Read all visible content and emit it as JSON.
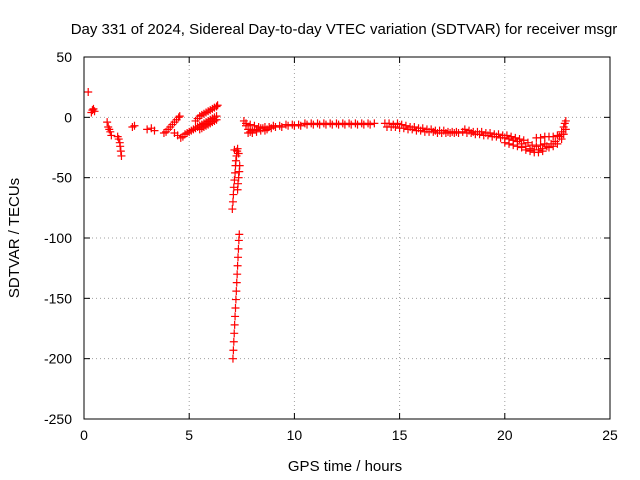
{
  "chart_data": {
    "type": "scatter",
    "title": "Day 331 of 2024, Sidereal Day-to-day VTEC variation (SDTVAR) for receiver msgr",
    "xlabel": "GPS time / hours",
    "ylabel": "SDTVAR / TECUs",
    "xlim": [
      0,
      25
    ],
    "ylim": [
      -250,
      50
    ],
    "xticks": [
      0,
      5,
      10,
      15,
      20,
      25
    ],
    "yticks": [
      50,
      0,
      -50,
      -100,
      -150,
      -200,
      -250
    ],
    "xtick_labels": [
      "0",
      "5",
      "10",
      "15",
      "20",
      "25"
    ],
    "ytick_labels": [
      "50",
      "0",
      "-50",
      "-100",
      "-150",
      "-200",
      "-250"
    ],
    "grid": true,
    "marker": "+",
    "color": "#ff0000",
    "series": [
      {
        "name": "SDTVAR",
        "points": [
          [
            0.2,
            21
          ],
          [
            0.35,
            4
          ],
          [
            0.4,
            6
          ],
          [
            0.45,
            7
          ],
          [
            0.5,
            5
          ],
          [
            1.1,
            -4
          ],
          [
            1.15,
            -8
          ],
          [
            1.2,
            -10
          ],
          [
            1.25,
            -12
          ],
          [
            1.3,
            -15
          ],
          [
            1.6,
            -16
          ],
          [
            1.65,
            -18
          ],
          [
            1.7,
            -21
          ],
          [
            1.72,
            -24
          ],
          [
            1.75,
            -28
          ],
          [
            1.78,
            -32
          ],
          [
            2.3,
            -8
          ],
          [
            2.4,
            -7
          ],
          [
            3.0,
            -10
          ],
          [
            3.2,
            -9
          ],
          [
            3.35,
            -11
          ],
          [
            3.8,
            -13
          ],
          [
            3.9,
            -12
          ],
          [
            4.0,
            -10
          ],
          [
            4.1,
            -8
          ],
          [
            4.2,
            -6
          ],
          [
            4.3,
            -4
          ],
          [
            4.4,
            -2
          ],
          [
            4.5,
            0
          ],
          [
            4.55,
            1
          ],
          [
            4.3,
            -13
          ],
          [
            4.45,
            -15
          ],
          [
            4.6,
            -17
          ],
          [
            4.7,
            -16
          ],
          [
            4.8,
            -14
          ],
          [
            4.9,
            -13
          ],
          [
            5.0,
            -12
          ],
          [
            5.1,
            -11
          ],
          [
            5.2,
            -10
          ],
          [
            5.3,
            -9
          ],
          [
            5.4,
            -8
          ],
          [
            5.5,
            -7
          ],
          [
            5.6,
            -6
          ],
          [
            5.7,
            -5
          ],
          [
            5.8,
            -4
          ],
          [
            5.9,
            -3
          ],
          [
            6.0,
            -2
          ],
          [
            6.1,
            -1
          ],
          [
            6.2,
            0
          ],
          [
            6.3,
            1
          ],
          [
            5.3,
            -3
          ],
          [
            5.4,
            -1
          ],
          [
            5.5,
            1
          ],
          [
            5.6,
            2
          ],
          [
            5.7,
            3
          ],
          [
            5.8,
            4
          ],
          [
            5.9,
            5
          ],
          [
            6.0,
            6
          ],
          [
            6.1,
            7
          ],
          [
            6.2,
            8
          ],
          [
            6.3,
            9
          ],
          [
            6.35,
            10
          ],
          [
            5.5,
            -10
          ],
          [
            5.6,
            -9
          ],
          [
            5.7,
            -8
          ],
          [
            5.8,
            -7
          ],
          [
            5.9,
            -6
          ],
          [
            6.0,
            -5
          ],
          [
            6.1,
            -4
          ],
          [
            6.2,
            -3
          ],
          [
            6.3,
            -2
          ],
          [
            7.05,
            -76
          ],
          [
            7.08,
            -70
          ],
          [
            7.1,
            -64
          ],
          [
            7.12,
            -58
          ],
          [
            7.15,
            -52
          ],
          [
            7.18,
            -46
          ],
          [
            7.2,
            -40
          ],
          [
            7.22,
            -36
          ],
          [
            7.25,
            -32
          ],
          [
            7.28,
            -28
          ],
          [
            7.3,
            -26
          ],
          [
            7.15,
            -27
          ],
          [
            7.35,
            -30
          ],
          [
            7.4,
            -40
          ],
          [
            7.38,
            -45
          ],
          [
            7.35,
            -50
          ],
          [
            7.32,
            -55
          ],
          [
            7.3,
            -60
          ],
          [
            7.08,
            -200
          ],
          [
            7.1,
            -193
          ],
          [
            7.12,
            -186
          ],
          [
            7.14,
            -179
          ],
          [
            7.16,
            -172
          ],
          [
            7.18,
            -165
          ],
          [
            7.2,
            -158
          ],
          [
            7.22,
            -151
          ],
          [
            7.24,
            -144
          ],
          [
            7.26,
            -137
          ],
          [
            7.28,
            -130
          ],
          [
            7.3,
            -123
          ],
          [
            7.32,
            -116
          ],
          [
            7.34,
            -109
          ],
          [
            7.36,
            -102
          ],
          [
            7.38,
            -97
          ],
          [
            7.6,
            -3
          ],
          [
            7.7,
            -7
          ],
          [
            7.8,
            -10
          ],
          [
            7.9,
            -12
          ],
          [
            8.0,
            -11
          ],
          [
            8.2,
            -10
          ],
          [
            8.4,
            -9
          ],
          [
            8.6,
            -8
          ],
          [
            8.8,
            -8
          ],
          [
            9.0,
            -7
          ],
          [
            9.3,
            -7
          ],
          [
            9.6,
            -6
          ],
          [
            9.9,
            -6
          ],
          [
            10.2,
            -6
          ],
          [
            10.5,
            -5
          ],
          [
            10.8,
            -5
          ],
          [
            11.1,
            -5
          ],
          [
            11.4,
            -5
          ],
          [
            11.7,
            -5
          ],
          [
            12.0,
            -5
          ],
          [
            12.3,
            -5
          ],
          [
            12.6,
            -5
          ],
          [
            12.9,
            -5
          ],
          [
            13.2,
            -5
          ],
          [
            13.5,
            -5
          ],
          [
            13.8,
            -5
          ],
          [
            7.7,
            -5
          ],
          [
            7.9,
            -6
          ],
          [
            8.1,
            -7
          ],
          [
            8.3,
            -8
          ],
          [
            8.5,
            -9
          ],
          [
            8.7,
            -10
          ],
          [
            8.9,
            -9
          ],
          [
            9.1,
            -8
          ],
          [
            9.4,
            -8
          ],
          [
            9.7,
            -7
          ],
          [
            10.0,
            -7
          ],
          [
            10.3,
            -7
          ],
          [
            10.6,
            -6
          ],
          [
            10.9,
            -6
          ],
          [
            11.2,
            -6
          ],
          [
            11.5,
            -6
          ],
          [
            11.8,
            -6
          ],
          [
            12.1,
            -6
          ],
          [
            12.4,
            -6
          ],
          [
            12.7,
            -6
          ],
          [
            13.0,
            -6
          ],
          [
            13.3,
            -6
          ],
          [
            13.6,
            -6
          ],
          [
            7.8,
            -13
          ],
          [
            8.0,
            -13
          ],
          [
            8.2,
            -12
          ],
          [
            8.4,
            -11
          ],
          [
            8.6,
            -11
          ],
          [
            14.3,
            -5
          ],
          [
            14.5,
            -5
          ],
          [
            14.7,
            -6
          ],
          [
            14.9,
            -5
          ],
          [
            15.1,
            -6
          ],
          [
            15.3,
            -7
          ],
          [
            15.5,
            -8
          ],
          [
            15.7,
            -8
          ],
          [
            15.9,
            -9
          ],
          [
            16.1,
            -9
          ],
          [
            16.3,
            -10
          ],
          [
            16.5,
            -10
          ],
          [
            16.7,
            -11
          ],
          [
            16.9,
            -11
          ],
          [
            17.1,
            -11
          ],
          [
            17.3,
            -12
          ],
          [
            17.5,
            -12
          ],
          [
            17.7,
            -12
          ],
          [
            14.4,
            -8
          ],
          [
            14.6,
            -8
          ],
          [
            14.8,
            -8
          ],
          [
            15.0,
            -9
          ],
          [
            15.2,
            -9
          ],
          [
            15.4,
            -10
          ],
          [
            15.6,
            -10
          ],
          [
            15.8,
            -11
          ],
          [
            16.0,
            -11
          ],
          [
            16.2,
            -12
          ],
          [
            16.4,
            -12
          ],
          [
            16.6,
            -12
          ],
          [
            16.8,
            -13
          ],
          [
            17.0,
            -13
          ],
          [
            17.2,
            -13
          ],
          [
            17.4,
            -13
          ],
          [
            17.6,
            -13
          ],
          [
            17.8,
            -13
          ],
          [
            18.0,
            -12
          ],
          [
            18.2,
            -13
          ],
          [
            18.4,
            -13
          ],
          [
            18.6,
            -14
          ],
          [
            18.8,
            -14
          ],
          [
            19.0,
            -15
          ],
          [
            19.2,
            -15
          ],
          [
            19.4,
            -16
          ],
          [
            19.6,
            -16
          ],
          [
            19.8,
            -17
          ],
          [
            20.0,
            -17
          ],
          [
            20.2,
            -18
          ],
          [
            20.4,
            -19
          ],
          [
            20.6,
            -20
          ],
          [
            20.8,
            -22
          ],
          [
            21.0,
            -24
          ],
          [
            21.2,
            -26
          ],
          [
            21.4,
            -27
          ],
          [
            21.6,
            -27
          ],
          [
            21.8,
            -26
          ],
          [
            22.0,
            -24
          ],
          [
            22.2,
            -22
          ],
          [
            22.4,
            -20
          ],
          [
            22.6,
            -16
          ],
          [
            22.7,
            -12
          ],
          [
            22.8,
            -8
          ],
          [
            22.85,
            -5
          ],
          [
            22.9,
            -3
          ],
          [
            18.1,
            -10
          ],
          [
            18.3,
            -11
          ],
          [
            18.5,
            -12
          ],
          [
            18.7,
            -12
          ],
          [
            18.9,
            -12
          ],
          [
            19.1,
            -13
          ],
          [
            19.3,
            -13
          ],
          [
            19.5,
            -14
          ],
          [
            19.7,
            -14
          ],
          [
            19.9,
            -15
          ],
          [
            20.1,
            -15
          ],
          [
            20.3,
            -16
          ],
          [
            20.5,
            -17
          ],
          [
            20.7,
            -18
          ],
          [
            20.9,
            -19
          ],
          [
            21.1,
            -21
          ],
          [
            21.3,
            -23
          ],
          [
            21.5,
            -24
          ],
          [
            21.7,
            -23
          ],
          [
            21.9,
            -22
          ],
          [
            20.0,
            -21
          ],
          [
            20.2,
            -22
          ],
          [
            20.4,
            -23
          ],
          [
            20.6,
            -24
          ],
          [
            20.8,
            -25
          ],
          [
            21.0,
            -27
          ],
          [
            21.2,
            -28
          ],
          [
            21.4,
            -29
          ],
          [
            21.6,
            -29
          ],
          [
            21.8,
            -28
          ],
          [
            21.5,
            -17
          ],
          [
            21.7,
            -17
          ],
          [
            21.9,
            -16
          ],
          [
            22.1,
            -16
          ],
          [
            22.3,
            -16
          ],
          [
            22.5,
            -15
          ],
          [
            22.7,
            -14
          ],
          [
            22.1,
            -25
          ],
          [
            22.3,
            -24
          ],
          [
            22.5,
            -22
          ],
          [
            22.7,
            -18
          ],
          [
            22.8,
            -14
          ],
          [
            22.9,
            -10
          ]
        ]
      }
    ]
  }
}
